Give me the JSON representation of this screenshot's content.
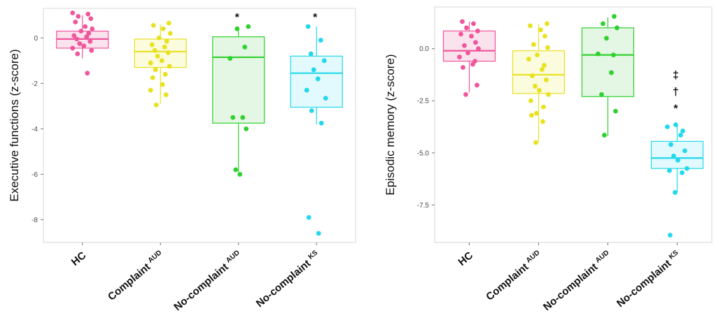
{
  "chart_data": [
    {
      "type": "box",
      "ylabel": "Executive functions (z-score)",
      "ylim": [
        -9,
        1.3
      ],
      "yticks": [
        0,
        -2,
        -4,
        -6,
        -8
      ],
      "grid": false,
      "categories": [
        {
          "name": "HC",
          "sup": ""
        },
        {
          "name": "Complaint",
          "sup": "AUD"
        },
        {
          "name": "No-complaint",
          "sup": "AUD"
        },
        {
          "name": "No-complaint",
          "sup": "KS"
        }
      ],
      "groups": [
        {
          "color": "#f0569c",
          "fill": "#fbe3ee",
          "box": {
            "q1": -0.45,
            "median": -0.05,
            "q3": 0.3,
            "low": -0.9,
            "high": 1.0
          },
          "points": [
            1.1,
            1.05,
            0.95,
            0.85,
            0.7,
            0.5,
            0.4,
            0.3,
            0.2,
            0.1,
            0.05,
            -0.05,
            -0.15,
            -0.25,
            -0.35,
            -0.45,
            -0.55,
            -0.7,
            -1.55
          ],
          "annotation": []
        },
        {
          "color": "#e8e21e",
          "fill": "#fbfbdd",
          "box": {
            "q1": -1.3,
            "median": -0.6,
            "q3": -0.05,
            "low": -2.9,
            "high": 0.6
          },
          "points": [
            0.65,
            0.55,
            0.4,
            0.2,
            0.0,
            -0.15,
            -0.3,
            -0.4,
            -0.55,
            -0.65,
            -0.8,
            -1.0,
            -1.1,
            -1.25,
            -1.4,
            -1.6,
            -1.75,
            -2.05,
            -2.3,
            -2.5,
            -2.95
          ],
          "annotation": []
        },
        {
          "color": "#2fd12f",
          "fill": "#e4f6e4",
          "box": {
            "q1": -3.75,
            "median": -0.85,
            "q3": 0.05,
            "low": -5.9,
            "high": 0.5
          },
          "points": [
            0.5,
            0.4,
            -0.4,
            -0.9,
            -3.5,
            -3.5,
            -4.0,
            -5.8,
            -6.0
          ],
          "annotation": [
            "*"
          ]
        },
        {
          "color": "#22d8ec",
          "fill": "#e2fafd",
          "box": {
            "q1": -3.05,
            "median": -1.55,
            "q3": -0.8,
            "low": -3.8,
            "high": 0.5
          },
          "points": [
            0.5,
            -0.1,
            -0.7,
            -1.0,
            -1.4,
            -1.8,
            -2.3,
            -2.65,
            -3.2,
            -3.75,
            -7.9,
            -8.6
          ],
          "annotation": [
            "*"
          ]
        }
      ]
    },
    {
      "type": "box",
      "ylabel": "Episodic memory (z-score)",
      "ylim": [
        -9.3,
        2.0
      ],
      "yticks": [
        "0.0",
        "-2.5",
        "-5.0",
        "-7.5"
      ],
      "grid": false,
      "categories": [
        {
          "name": "HC",
          "sup": ""
        },
        {
          "name": "Complaint",
          "sup": "AUD"
        },
        {
          "name": "No-complaint",
          "sup": "AUD"
        },
        {
          "name": "No-complaint",
          "sup": "KS"
        }
      ],
      "groups": [
        {
          "color": "#f0569c",
          "fill": "#fbe3ee",
          "box": {
            "q1": -0.6,
            "median": -0.1,
            "q3": 0.85,
            "low": -2.1,
            "high": 1.3
          },
          "points": [
            1.3,
            1.2,
            1.0,
            0.85,
            0.7,
            0.6,
            0.3,
            0.15,
            0.0,
            -0.2,
            -0.4,
            -0.6,
            -0.75,
            -0.9,
            -1.75,
            -2.2
          ],
          "annotation": []
        },
        {
          "color": "#e8e21e",
          "fill": "#fbfbdd",
          "box": {
            "q1": -2.15,
            "median": -1.25,
            "q3": -0.1,
            "low": -4.5,
            "high": 1.2
          },
          "points": [
            1.2,
            1.1,
            0.9,
            0.6,
            0.2,
            0.05,
            -0.3,
            -0.5,
            -0.8,
            -1.0,
            -1.3,
            -1.5,
            -1.8,
            -2.0,
            -2.2,
            -2.5,
            -2.8,
            -3.1,
            -3.2,
            -3.5,
            -4.5
          ],
          "annotation": []
        },
        {
          "color": "#2fd12f",
          "fill": "#e4f6e4",
          "box": {
            "q1": -2.3,
            "median": -0.3,
            "q3": 1.0,
            "low": -4.2,
            "high": 1.5
          },
          "points": [
            1.55,
            1.2,
            1.0,
            0.5,
            -0.25,
            -0.3,
            -1.15,
            -2.2,
            -3.0,
            -4.15
          ],
          "annotation": []
        },
        {
          "color": "#22d8ec",
          "fill": "#e2fafd",
          "box": {
            "q1": -5.75,
            "median": -5.25,
            "q3": -4.45,
            "low": -6.9,
            "high": -3.65
          },
          "points": [
            -3.65,
            -3.75,
            -3.95,
            -4.15,
            -4.6,
            -4.9,
            -5.15,
            -5.35,
            -5.75,
            -5.85,
            -5.95,
            -6.9,
            -8.95
          ],
          "annotation": [
            "*",
            "†",
            "‡"
          ]
        }
      ]
    }
  ]
}
